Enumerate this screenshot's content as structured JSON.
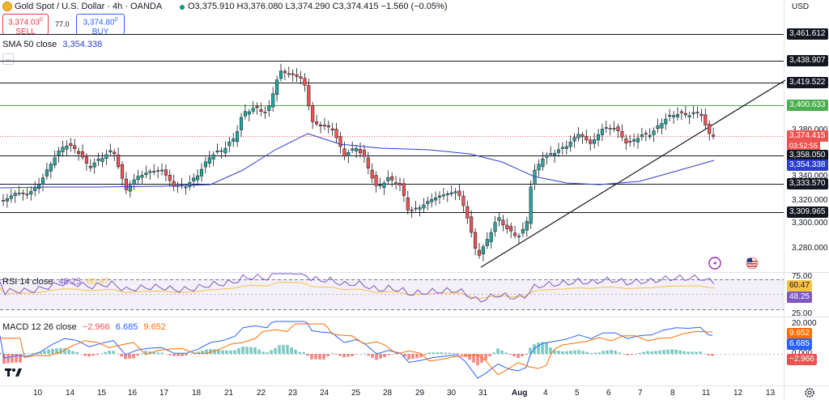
{
  "header": {
    "title": "Gold Spot / U.S. Dollar · 4h · OANDA",
    "ohlc": "O3,375.910  H3,376.080  L3,374.290  C3,374.415  −1.560 (−0.05%)",
    "currency": "USD"
  },
  "trade": {
    "sell_price": "3,374.03",
    "sell_sup": "0",
    "sell_label": "SELL",
    "spread": "77.0",
    "buy_price": "3,374.80",
    "buy_sup": "0",
    "buy_label": "BUY"
  },
  "indicators": {
    "sma_label": "SMA 50 close",
    "sma_value": "3,354.338",
    "rsi_label": "RSI 14 close",
    "rsi_value": "48.25",
    "rsi_ma_value": "60.47",
    "macd_label": "MACD 12 26 close",
    "macd_hist": "−2.966",
    "macd_line": "6.685",
    "macd_signal": "9.652"
  },
  "price_axis": {
    "ticks": [
      "3,380.000",
      "3,340.000",
      "3,320.000",
      "3,300.000",
      "3,280.000"
    ],
    "levels": [
      "3,461.612",
      "3,438.907",
      "3,419.522",
      "3,400.633",
      "3,358.050",
      "3,354.338",
      "3,333.570",
      "3,309.965"
    ],
    "current_price": "3,374.415",
    "countdown": "03:52:55"
  },
  "rsi_axis": {
    "ticks": [
      "75.00",
      "25.00"
    ],
    "ma_tag": "60.47",
    "rsi_tag": "48.25"
  },
  "macd_axis": {
    "ticks": [
      "20.000",
      "9.652",
      "6.685",
      "0.000",
      "−2.966"
    ]
  },
  "time_axis": [
    "10",
    "14",
    "15",
    "16",
    "17",
    "18",
    "21",
    "22",
    "23",
    "24",
    "25",
    "28",
    "29",
    "30",
    "31",
    "Aug",
    "4",
    "5",
    "6",
    "7",
    "8",
    "11",
    "12",
    "13"
  ],
  "colors": {
    "up": "#26a69a",
    "down": "#ef5350",
    "sma": "#2c3fd1",
    "rsi": "#7e57c2",
    "rsi_ma": "#f5c242",
    "macd": "#2962ff",
    "signal": "#ff6d00",
    "green_level": "#4caf50"
  },
  "icons": [
    "gold-coin-icon",
    "live-dot-icon",
    "lightning-icon",
    "flag-icon",
    "tradingview-logo",
    "settings-gear-icon"
  ]
}
